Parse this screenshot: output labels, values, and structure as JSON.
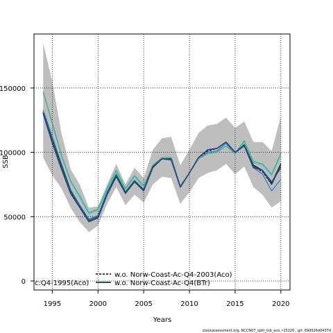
{
  "chart_data": {
    "type": "line",
    "title": "",
    "xlabel": "Years",
    "ylabel": "SSB",
    "xlim": [
      1993,
      2021
    ],
    "ylim": [
      -7000,
      192000
    ],
    "xticks": [
      1995,
      2000,
      2005,
      2010,
      2015,
      2020
    ],
    "yticks": [
      0,
      50000,
      100000,
      150000
    ],
    "grid": true,
    "legend_position": "bottom-left",
    "x": [
      1994,
      1995,
      1996,
      1997,
      1998,
      1999,
      2000,
      2001,
      2002,
      2003,
      2004,
      2005,
      2006,
      2007,
      2008,
      2009,
      2010,
      2011,
      2012,
      2013,
      2014,
      2015,
      2016,
      2017,
      2018,
      2019,
      2020
    ],
    "band": {
      "color": "#bebebe",
      "upper": [
        185000,
        155000,
        115000,
        87000,
        75000,
        57000,
        58000,
        75000,
        91000,
        75000,
        88000,
        80000,
        102000,
        111000,
        112000,
        90000,
        102000,
        115000,
        121000,
        122000,
        127000,
        119000,
        124000,
        108000,
        108000,
        101000,
        128000
      ],
      "lower": [
        96000,
        82000,
        72000,
        57000,
        46000,
        38000,
        43000,
        60000,
        73000,
        59000,
        67000,
        61000,
        75000,
        81000,
        80000,
        60000,
        69000,
        80000,
        84000,
        86000,
        91000,
        83000,
        89000,
        73000,
        67000,
        57000,
        62000
      ]
    },
    "series": [
      {
        "color": "#3a7fd4",
        "dashed": false,
        "values": [
          133000,
          112000,
          91000,
          71000,
          59000,
          48000,
          51000,
          69000,
          82000,
          69000,
          78000,
          71000,
          89000,
          95000,
          95000,
          73000,
          84000,
          95000,
          100000,
          101000,
          107000,
          99000,
          106000,
          88000,
          83000,
          70000,
          79000
        ]
      },
      {
        "color": "#1a1a2e",
        "dashed": false,
        "values": [
          131000,
          110000,
          90000,
          70000,
          58000,
          47000,
          50000,
          68000,
          83000,
          69000,
          78000,
          71000,
          89000,
          95000,
          95000,
          73000,
          84000,
          96000,
          102000,
          103000,
          108000,
          100000,
          106000,
          90000,
          86000,
          76000,
          91000
        ]
      },
      {
        "color": "#4ec7df",
        "dashed": false,
        "values": [
          147000,
          122000,
          97000,
          77000,
          65000,
          52000,
          55000,
          71000,
          84000,
          71000,
          81000,
          73000,
          89000,
          95000,
          96000,
          74000,
          84000,
          95000,
          99000,
          100000,
          105000,
          99000,
          108000,
          92000,
          90000,
          82000,
          98000
        ]
      },
      {
        "color": "#4caf84",
        "dashed": false,
        "values": [
          147000,
          123000,
          98000,
          78000,
          66000,
          53000,
          56000,
          72000,
          86000,
          72000,
          82000,
          74000,
          90000,
          96000,
          96000,
          74000,
          84000,
          95000,
          99000,
          100000,
          105000,
          99000,
          109000,
          93000,
          91000,
          83000,
          99000
        ]
      },
      {
        "name": "w.o. Norw-Coast-Ac-Q4-2003(Aco)",
        "color": "#000000",
        "dashed": true,
        "values": [
          131000,
          109000,
          89000,
          69000,
          58000,
          47000,
          50000,
          68000,
          82000,
          69000,
          78000,
          71000,
          89000,
          95000,
          95000,
          73000,
          84000,
          96000,
          101000,
          103000,
          108000,
          100000,
          105000,
          89000,
          85000,
          75000,
          90000
        ]
      },
      {
        "name": "w.o. Norw-Coast-Ac-Q4(BTr)",
        "color": "#1b5e45",
        "dashed": false,
        "values": [
          131000,
          110000,
          89000,
          70000,
          58000,
          47000,
          50000,
          68000,
          82000,
          69000,
          78000,
          71000,
          89000,
          95000,
          95000,
          73000,
          84000,
          96000,
          102000,
          103000,
          108000,
          100000,
          106000,
          89000,
          86000,
          75000,
          90000
        ]
      },
      {
        "color": "#2a3f8f",
        "dashed": false,
        "values": [
          130000,
          107000,
          87000,
          68000,
          57000,
          46000,
          49000,
          67000,
          81000,
          68000,
          77000,
          70000,
          88000,
          95000,
          94000,
          73000,
          84000,
          96000,
          102000,
          103000,
          108000,
          100000,
          105000,
          88000,
          86000,
          77000,
          88000
        ]
      }
    ],
    "legend_entries": [
      "w.o. Norw-Coast-Ac-Q4-2003(Aco)",
      "w.o. Norw-Coast-Ac-Q4(BTr)"
    ],
    "legend_overflow_text": "c:Q4-1995(Aco)"
  },
  "footer": {
    "text": "stockassessment.org, NCCN07_split_tsb_aco, r15220 , git: 69d926d0437d"
  }
}
